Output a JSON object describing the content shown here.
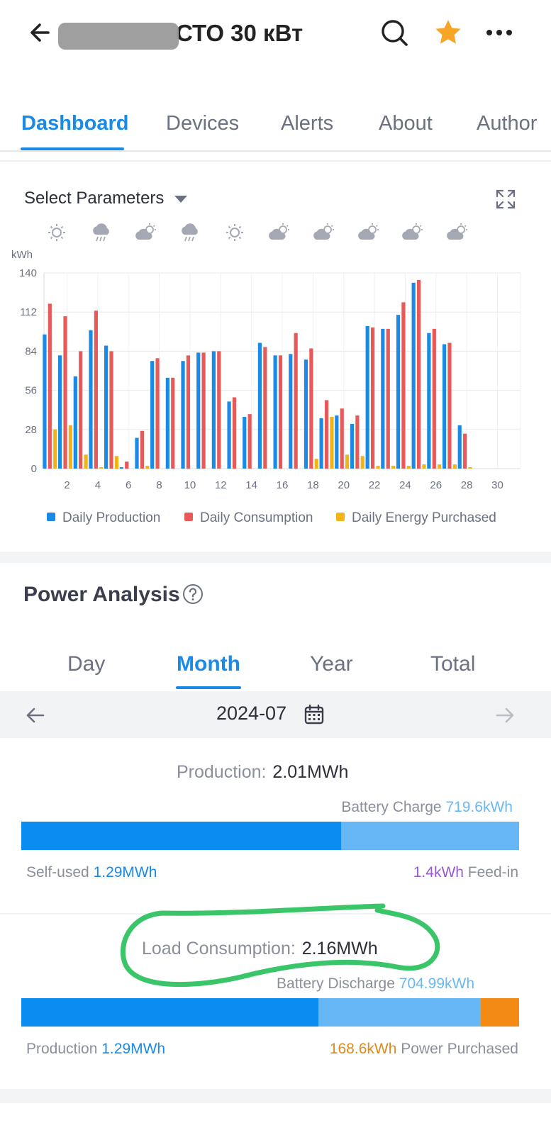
{
  "header": {
    "title": "СТО 30 кВт",
    "back_icon": "back-arrow-icon",
    "search_icon": "search-icon",
    "favorite_icon": "star-icon",
    "favorite_color": "#f7a528",
    "more_icon": "more-icon"
  },
  "tabs": [
    {
      "label": "Dashboard",
      "active": true
    },
    {
      "label": "Devices",
      "active": false
    },
    {
      "label": "Alerts",
      "active": false
    },
    {
      "label": "About",
      "active": false
    },
    {
      "label": "Author",
      "active": false
    }
  ],
  "chart_card": {
    "select_label": "Select Parameters",
    "weather": [
      "sunny",
      "rain",
      "partly-cloudy",
      "rain",
      "sunny",
      "partly-cloudy",
      "partly-cloudy",
      "partly-cloudy",
      "partly-cloudy",
      "partly-cloudy"
    ]
  },
  "chart_data": {
    "type": "bar",
    "ylabel": "kWh",
    "ylim": [
      0,
      140
    ],
    "yticks": [
      0,
      28,
      56,
      84,
      112,
      140
    ],
    "xticks": [
      2,
      4,
      6,
      8,
      10,
      12,
      14,
      16,
      18,
      20,
      22,
      24,
      26,
      28,
      30
    ],
    "categories": [
      1,
      2,
      3,
      4,
      5,
      6,
      7,
      8,
      9,
      10,
      11,
      12,
      13,
      14,
      15,
      16,
      17,
      18,
      19,
      20,
      21,
      22,
      23,
      24,
      25,
      26,
      27,
      28,
      29,
      30,
      31
    ],
    "grid": true,
    "legend_position": "bottom",
    "series": [
      {
        "name": "Daily Production",
        "color": "#1a8ae6",
        "values": [
          96,
          81,
          66,
          99,
          88,
          1,
          22,
          77,
          65,
          77,
          83,
          84,
          48,
          37,
          90,
          81,
          82,
          78,
          36,
          38,
          32,
          102,
          100,
          110,
          133,
          97,
          89,
          31,
          0,
          0,
          0
        ]
      },
      {
        "name": "Daily Consumption",
        "color": "#e85a5a",
        "values": [
          118,
          109,
          84,
          113,
          84,
          5,
          27,
          79,
          65,
          81,
          83,
          84,
          51,
          39,
          87,
          81,
          97,
          86,
          49,
          43,
          38,
          101,
          100,
          119,
          135,
          100,
          90,
          25,
          0,
          0,
          0
        ]
      },
      {
        "name": "Daily Energy Purchased",
        "color": "#f0b416",
        "values": [
          28,
          31,
          10,
          1,
          9,
          0,
          2,
          0,
          0,
          0,
          0,
          0,
          0,
          0,
          0,
          0,
          0,
          7,
          37,
          10,
          9,
          2,
          2,
          2,
          3,
          3,
          3,
          1,
          0,
          0,
          0
        ]
      }
    ]
  },
  "power_analysis": {
    "title": "Power Analysis",
    "help_icon": "help-circle-icon",
    "periods": [
      {
        "label": "Day",
        "active": false
      },
      {
        "label": "Month",
        "active": true
      },
      {
        "label": "Year",
        "active": false
      },
      {
        "label": "Total",
        "active": false
      }
    ],
    "date": "2024-07",
    "production": {
      "label": "Production:",
      "value": "2.01MWh",
      "battery_charge_label": "Battery Charge",
      "battery_charge_value": "719.6kWh",
      "self_used_label": "Self-used",
      "self_used_value": "1.29MWh",
      "feed_in_value": "1.4kWh",
      "feed_in_label": "Feed-in",
      "self_used_fraction": 0.642,
      "battery_fraction": 0.358,
      "colors": {
        "self_used": "#0a8cf0",
        "battery": "#67b7f7"
      }
    },
    "consumption": {
      "label": "Load Consumption:",
      "value": "2.16MWh",
      "battery_discharge_label": "Battery Discharge",
      "battery_discharge_value": "704.99kWh",
      "production_label": "Production",
      "production_value": "1.29MWh",
      "purchased_value": "168.6kWh",
      "purchased_label": "Power Purchased",
      "production_fraction": 0.597,
      "battery_fraction": 0.326,
      "purchased_fraction": 0.077,
      "colors": {
        "production": "#0a8cf0",
        "battery": "#67b7f7",
        "purchased": "#f38a14"
      },
      "highlight_color": "#3ac569"
    }
  }
}
